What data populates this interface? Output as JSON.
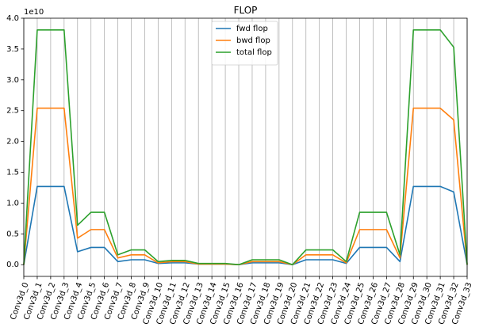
{
  "chart_data": {
    "type": "line",
    "title": "FLOP",
    "xlabel": "",
    "ylabel": "",
    "y_offset_text": "1e10",
    "ylim": [
      -0.19,
      4.0
    ],
    "y_ticks": [
      0.0,
      0.5,
      1.0,
      1.5,
      2.0,
      2.5,
      3.0,
      3.5,
      4.0
    ],
    "y_tick_labels": [
      "0.0",
      "0.5",
      "1.0",
      "1.5",
      "2.0",
      "2.5",
      "3.0",
      "3.5",
      "4.0"
    ],
    "grid": "vertical",
    "legend_position": "top-center",
    "categories": [
      "Conv3d_0",
      "Conv3d_1",
      "Conv3d_2",
      "Conv3d_3",
      "Conv3d_4",
      "Conv3d_5",
      "Conv3d_6",
      "Conv3d_7",
      "Conv3d_8",
      "Conv3d_9",
      "Conv3d_10",
      "Conv3d_11",
      "Conv3d_12",
      "Conv3d_13",
      "Conv3d_14",
      "Conv3d_15",
      "Conv3d_16",
      "Conv3d_17",
      "Conv3d_18",
      "Conv3d_19",
      "Conv3d_20",
      "Conv3d_21",
      "Conv3d_22",
      "Conv3d_23",
      "Conv3d_24",
      "Conv3d_25",
      "Conv3d_26",
      "Conv3d_27",
      "Conv3d_28",
      "Conv3d_29",
      "Conv3d_30",
      "Conv3d_31",
      "Conv3d_32",
      "Conv3d_33"
    ],
    "series": [
      {
        "name": "fwd flop",
        "color": "#1f77b4",
        "values": [
          0.0,
          1.27,
          1.27,
          1.27,
          0.21,
          0.28,
          0.28,
          0.05,
          0.08,
          0.08,
          0.02,
          0.03,
          0.03,
          0.01,
          0.01,
          0.01,
          0.0,
          0.03,
          0.03,
          0.03,
          0.0,
          0.08,
          0.08,
          0.08,
          0.02,
          0.28,
          0.28,
          0.28,
          0.05,
          1.27,
          1.27,
          1.27,
          1.18,
          0.0
        ]
      },
      {
        "name": "bwd flop",
        "color": "#ff7f0e",
        "values": [
          0.0,
          2.54,
          2.54,
          2.54,
          0.43,
          0.57,
          0.57,
          0.11,
          0.16,
          0.16,
          0.03,
          0.05,
          0.05,
          0.01,
          0.01,
          0.01,
          0.0,
          0.05,
          0.05,
          0.05,
          0.0,
          0.16,
          0.16,
          0.16,
          0.03,
          0.57,
          0.57,
          0.57,
          0.11,
          2.54,
          2.54,
          2.54,
          2.35,
          0.0
        ]
      },
      {
        "name": "total flop",
        "color": "#2ca02c",
        "values": [
          0.0,
          3.81,
          3.81,
          3.81,
          0.64,
          0.85,
          0.85,
          0.16,
          0.24,
          0.24,
          0.05,
          0.07,
          0.07,
          0.02,
          0.02,
          0.02,
          0.0,
          0.08,
          0.08,
          0.08,
          0.0,
          0.24,
          0.24,
          0.24,
          0.05,
          0.85,
          0.85,
          0.85,
          0.16,
          3.81,
          3.81,
          3.81,
          3.53,
          0.0
        ]
      }
    ]
  }
}
